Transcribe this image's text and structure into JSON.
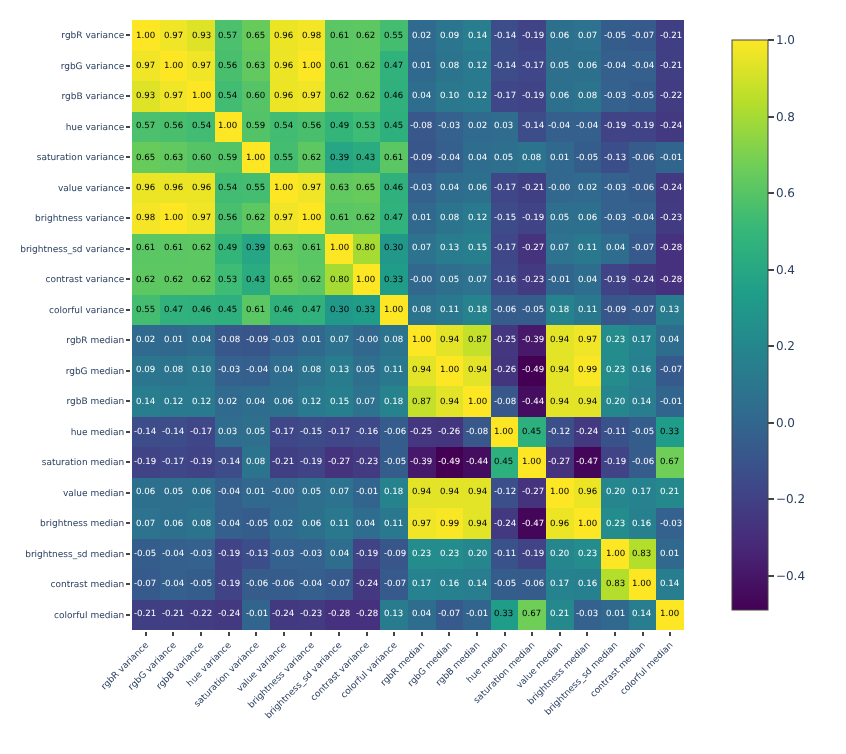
{
  "chart_data": {
    "type": "heatmap",
    "categories": [
      "rgbR variance",
      "rgbG variance",
      "rgbB variance",
      "hue variance",
      "saturation variance",
      "value variance",
      "brightness variance",
      "brightness_sd variance",
      "contrast variance",
      "colorful variance",
      "rgbR median",
      "rgbG median",
      "rgbB median",
      "hue median",
      "saturation median",
      "value median",
      "brightness median",
      "brightness_sd median",
      "contrast median",
      "colorful median"
    ],
    "y_categories": [
      "rgbR variance",
      "rgbG variance",
      "rgbB variance",
      "hue variance",
      "saturation variance",
      "value variance",
      "brightness variance",
      "brightness_sd variance",
      "contrast variance",
      "colorful variance",
      "rgbR median",
      "rgbG median",
      "rgbB median",
      "hue median",
      "saturation median",
      "value median",
      "brightness median",
      "brightness_sd median",
      "contrast median",
      "colorful median"
    ],
    "cells": [
      [
        1.0,
        0.97,
        0.93,
        0.57,
        0.65,
        0.96,
        0.98,
        0.61,
        0.62,
        0.55,
        0.02,
        0.09,
        0.14,
        -0.14,
        -0.19,
        0.06,
        0.07,
        -0.05,
        -0.07,
        -0.21
      ],
      [
        0.97,
        1.0,
        0.97,
        0.56,
        0.63,
        0.96,
        1.0,
        0.61,
        0.62,
        0.47,
        0.01,
        0.08,
        0.12,
        -0.14,
        -0.17,
        0.05,
        0.06,
        -0.04,
        -0.04,
        -0.21
      ],
      [
        0.93,
        0.97,
        1.0,
        0.54,
        0.6,
        0.96,
        0.97,
        0.62,
        0.62,
        0.46,
        0.04,
        0.1,
        0.12,
        -0.17,
        -0.19,
        0.06,
        0.08,
        -0.03,
        -0.05,
        -0.22
      ],
      [
        0.57,
        0.56,
        0.54,
        1.0,
        0.59,
        0.54,
        0.56,
        0.49,
        0.53,
        0.45,
        -0.08,
        -0.03,
        0.02,
        0.03,
        -0.14,
        -0.04,
        -0.04,
        -0.19,
        -0.19,
        -0.24
      ],
      [
        0.65,
        0.63,
        0.6,
        0.59,
        1.0,
        0.55,
        0.62,
        0.39,
        0.43,
        0.61,
        -0.09,
        -0.04,
        0.04,
        0.05,
        0.08,
        0.01,
        -0.05,
        -0.13,
        -0.06,
        -0.01
      ],
      [
        0.96,
        0.96,
        0.96,
        0.54,
        0.55,
        1.0,
        0.97,
        0.63,
        0.65,
        0.46,
        -0.03,
        0.04,
        0.06,
        -0.17,
        -0.21,
        -0.0,
        0.02,
        -0.03,
        -0.06,
        -0.24
      ],
      [
        0.98,
        1.0,
        0.97,
        0.56,
        0.62,
        0.97,
        1.0,
        0.61,
        0.62,
        0.47,
        0.01,
        0.08,
        0.12,
        -0.15,
        -0.19,
        0.05,
        0.06,
        -0.03,
        -0.04,
        -0.23
      ],
      [
        0.61,
        0.61,
        0.62,
        0.49,
        0.39,
        0.63,
        0.61,
        1.0,
        0.8,
        0.3,
        0.07,
        0.13,
        0.15,
        -0.17,
        -0.27,
        0.07,
        0.11,
        0.04,
        -0.07,
        -0.28
      ],
      [
        0.62,
        0.62,
        0.62,
        0.53,
        0.43,
        0.65,
        0.62,
        0.8,
        1.0,
        0.33,
        -0.0,
        0.05,
        0.07,
        -0.16,
        -0.23,
        -0.01,
        0.04,
        -0.19,
        -0.24,
        -0.28
      ],
      [
        0.55,
        0.47,
        0.46,
        0.45,
        0.61,
        0.46,
        0.47,
        0.3,
        0.33,
        1.0,
        0.08,
        0.11,
        0.18,
        -0.06,
        -0.05,
        0.18,
        0.11,
        -0.09,
        -0.07,
        0.13
      ],
      [
        0.02,
        0.01,
        0.04,
        -0.08,
        -0.09,
        -0.03,
        0.01,
        0.07,
        -0.0,
        0.08,
        1.0,
        0.94,
        0.87,
        -0.25,
        -0.39,
        0.94,
        0.97,
        0.23,
        0.17,
        0.04
      ],
      [
        0.09,
        0.08,
        0.1,
        -0.03,
        -0.04,
        0.04,
        0.08,
        0.13,
        0.05,
        0.11,
        0.94,
        1.0,
        0.94,
        -0.26,
        -0.49,
        0.94,
        0.99,
        0.23,
        0.16,
        -0.07
      ],
      [
        0.14,
        0.12,
        0.12,
        0.02,
        0.04,
        0.06,
        0.12,
        0.15,
        0.07,
        0.18,
        0.87,
        0.94,
        1.0,
        -0.08,
        -0.44,
        0.94,
        0.94,
        0.2,
        0.14,
        -0.01
      ],
      [
        -0.14,
        -0.14,
        -0.17,
        0.03,
        0.05,
        -0.17,
        -0.15,
        -0.17,
        -0.16,
        -0.06,
        -0.25,
        -0.26,
        -0.08,
        1.0,
        0.45,
        -0.12,
        -0.24,
        -0.11,
        -0.05,
        0.33
      ],
      [
        -0.19,
        -0.17,
        -0.19,
        -0.14,
        0.08,
        -0.21,
        -0.19,
        -0.27,
        -0.23,
        -0.05,
        -0.39,
        -0.49,
        -0.44,
        0.45,
        1.0,
        -0.27,
        -0.47,
        -0.19,
        -0.06,
        0.67
      ],
      [
        0.06,
        0.05,
        0.06,
        -0.04,
        0.01,
        -0.0,
        0.05,
        0.07,
        -0.01,
        0.18,
        0.94,
        0.94,
        0.94,
        -0.12,
        -0.27,
        1.0,
        0.96,
        0.2,
        0.17,
        0.21
      ],
      [
        0.07,
        0.06,
        0.08,
        -0.04,
        -0.05,
        0.02,
        0.06,
        0.11,
        0.04,
        0.11,
        0.97,
        0.99,
        0.94,
        -0.24,
        -0.47,
        0.96,
        1.0,
        0.23,
        0.16,
        -0.03
      ],
      [
        -0.05,
        -0.04,
        -0.03,
        -0.19,
        -0.13,
        -0.03,
        -0.03,
        0.04,
        -0.19,
        -0.09,
        0.23,
        0.23,
        0.2,
        -0.11,
        -0.19,
        0.2,
        0.23,
        1.0,
        0.83,
        0.01
      ],
      [
        -0.07,
        -0.04,
        -0.05,
        -0.19,
        -0.06,
        -0.06,
        -0.04,
        -0.07,
        -0.24,
        -0.07,
        0.17,
        0.16,
        0.14,
        -0.05,
        -0.06,
        0.17,
        0.16,
        0.83,
        1.0,
        0.14
      ],
      [
        -0.21,
        -0.21,
        -0.22,
        -0.24,
        -0.01,
        -0.24,
        -0.23,
        -0.28,
        -0.28,
        0.13,
        0.04,
        -0.07,
        -0.01,
        0.33,
        0.67,
        0.21,
        -0.03,
        0.01,
        0.14,
        1.0
      ]
    ],
    "cell_labels": [
      [
        "1.00",
        "0.97",
        "0.93",
        "0.57",
        "0.65",
        "0.96",
        "0.98",
        "0.61",
        "0.62",
        "0.55",
        "0.02",
        "0.09",
        "0.14",
        "-0.14",
        "-0.19",
        "0.06",
        "0.07",
        "-0.05",
        "-0.07",
        "-0.21"
      ],
      [
        "0.97",
        "1.00",
        "0.97",
        "0.56",
        "0.63",
        "0.96",
        "1.00",
        "0.61",
        "0.62",
        "0.47",
        "0.01",
        "0.08",
        "0.12",
        "-0.14",
        "-0.17",
        "0.05",
        "0.06",
        "-0.04",
        "-0.04",
        "-0.21"
      ],
      [
        "0.93",
        "0.97",
        "1.00",
        "0.54",
        "0.60",
        "0.96",
        "0.97",
        "0.62",
        "0.62",
        "0.46",
        "0.04",
        "0.10",
        "0.12",
        "-0.17",
        "-0.19",
        "0.06",
        "0.08",
        "-0.03",
        "-0.05",
        "-0.22"
      ],
      [
        "0.57",
        "0.56",
        "0.54",
        "1.00",
        "0.59",
        "0.54",
        "0.56",
        "0.49",
        "0.53",
        "0.45",
        "-0.08",
        "-0.03",
        "0.02",
        "0.03",
        "-0.14",
        "-0.04",
        "-0.04",
        "-0.19",
        "-0.19",
        "-0.24"
      ],
      [
        "0.65",
        "0.63",
        "0.60",
        "0.59",
        "1.00",
        "0.55",
        "0.62",
        "0.39",
        "0.43",
        "0.61",
        "-0.09",
        "-0.04",
        "0.04",
        "0.05",
        "0.08",
        "0.01",
        "-0.05",
        "-0.13",
        "-0.06",
        "-0.01"
      ],
      [
        "0.96",
        "0.96",
        "0.96",
        "0.54",
        "0.55",
        "1.00",
        "0.97",
        "0.63",
        "0.65",
        "0.46",
        "-0.03",
        "0.04",
        "0.06",
        "-0.17",
        "-0.21",
        "-0.00",
        "0.02",
        "-0.03",
        "-0.06",
        "-0.24"
      ],
      [
        "0.98",
        "1.00",
        "0.97",
        "0.56",
        "0.62",
        "0.97",
        "1.00",
        "0.61",
        "0.62",
        "0.47",
        "0.01",
        "0.08",
        "0.12",
        "-0.15",
        "-0.19",
        "0.05",
        "0.06",
        "-0.03",
        "-0.04",
        "-0.23"
      ],
      [
        "0.61",
        "0.61",
        "0.62",
        "0.49",
        "0.39",
        "0.63",
        "0.61",
        "1.00",
        "0.80",
        "0.30",
        "0.07",
        "0.13",
        "0.15",
        "-0.17",
        "-0.27",
        "0.07",
        "0.11",
        "0.04",
        "-0.07",
        "-0.28"
      ],
      [
        "0.62",
        "0.62",
        "0.62",
        "0.53",
        "0.43",
        "0.65",
        "0.62",
        "0.80",
        "1.00",
        "0.33",
        "-0.00",
        "0.05",
        "0.07",
        "-0.16",
        "-0.23",
        "-0.01",
        "0.04",
        "-0.19",
        "-0.24",
        "-0.28"
      ],
      [
        "0.55",
        "0.47",
        "0.46",
        "0.45",
        "0.61",
        "0.46",
        "0.47",
        "0.30",
        "0.33",
        "1.00",
        "0.08",
        "0.11",
        "0.18",
        "-0.06",
        "-0.05",
        "0.18",
        "0.11",
        "-0.09",
        "-0.07",
        "0.13"
      ],
      [
        "0.02",
        "0.01",
        "0.04",
        "-0.08",
        "-0.09",
        "-0.03",
        "0.01",
        "0.07",
        "-0.00",
        "0.08",
        "1.00",
        "0.94",
        "0.87",
        "-0.25",
        "-0.39",
        "0.94",
        "0.97",
        "0.23",
        "0.17",
        "0.04"
      ],
      [
        "0.09",
        "0.08",
        "0.10",
        "-0.03",
        "-0.04",
        "0.04",
        "0.08",
        "0.13",
        "0.05",
        "0.11",
        "0.94",
        "1.00",
        "0.94",
        "-0.26",
        "-0.49",
        "0.94",
        "0.99",
        "0.23",
        "0.16",
        "-0.07"
      ],
      [
        "0.14",
        "0.12",
        "0.12",
        "0.02",
        "0.04",
        "0.06",
        "0.12",
        "0.15",
        "0.07",
        "0.18",
        "0.87",
        "0.94",
        "1.00",
        "-0.08",
        "-0.44",
        "0.94",
        "0.94",
        "0.20",
        "0.14",
        "-0.01"
      ],
      [
        "-0.14",
        "-0.14",
        "-0.17",
        "0.03",
        "0.05",
        "-0.17",
        "-0.15",
        "-0.17",
        "-0.16",
        "-0.06",
        "-0.25",
        "-0.26",
        "-0.08",
        "1.00",
        "0.45",
        "-0.12",
        "-0.24",
        "-0.11",
        "-0.05",
        "0.33"
      ],
      [
        "-0.19",
        "-0.17",
        "-0.19",
        "-0.14",
        "0.08",
        "-0.21",
        "-0.19",
        "-0.27",
        "-0.23",
        "-0.05",
        "-0.39",
        "-0.49",
        "-0.44",
        "0.45",
        "1.00",
        "-0.27",
        "-0.47",
        "-0.19",
        "-0.06",
        "0.67"
      ],
      [
        "0.06",
        "0.05",
        "0.06",
        "-0.04",
        "0.01",
        "-0.00",
        "0.05",
        "0.07",
        "-0.01",
        "0.18",
        "0.94",
        "0.94",
        "0.94",
        "-0.12",
        "-0.27",
        "1.00",
        "0.96",
        "0.20",
        "0.17",
        "0.21"
      ],
      [
        "0.07",
        "0.06",
        "0.08",
        "-0.04",
        "-0.05",
        "0.02",
        "0.06",
        "0.11",
        "0.04",
        "0.11",
        "0.97",
        "0.99",
        "0.94",
        "-0.24",
        "-0.47",
        "0.96",
        "1.00",
        "0.23",
        "0.16",
        "-0.03"
      ],
      [
        "-0.05",
        "-0.04",
        "-0.03",
        "-0.19",
        "-0.13",
        "-0.03",
        "-0.03",
        "0.04",
        "-0.19",
        "-0.09",
        "0.23",
        "0.23",
        "0.20",
        "-0.11",
        "-0.19",
        "0.20",
        "0.23",
        "1.00",
        "0.83",
        "0.01"
      ],
      [
        "-0.07",
        "-0.04",
        "-0.05",
        "-0.19",
        "-0.06",
        "-0.06",
        "-0.04",
        "-0.07",
        "-0.24",
        "-0.07",
        "0.17",
        "0.16",
        "0.14",
        "-0.05",
        "-0.06",
        "0.17",
        "0.16",
        "0.83",
        "1.00",
        "0.14"
      ],
      [
        "-0.21",
        "-0.21",
        "-0.22",
        "-0.24",
        "-0.01",
        "-0.24",
        "-0.23",
        "-0.28",
        "-0.28",
        "0.13",
        "0.04",
        "-0.07",
        "-0.01",
        "0.33",
        "0.67",
        "0.21",
        "-0.03",
        "0.01",
        "0.14",
        "1.00"
      ]
    ],
    "clim": [
      -0.49,
      1.0
    ],
    "cticks": [
      {
        "value": -0.4,
        "label": "−0.4"
      },
      {
        "value": -0.2,
        "label": "−0.2"
      },
      {
        "value": 0.0,
        "label": "0.0"
      },
      0.2,
      0.4,
      0.6,
      0.8,
      {
        "value": 1.0,
        "label": "1.0"
      }
    ]
  }
}
